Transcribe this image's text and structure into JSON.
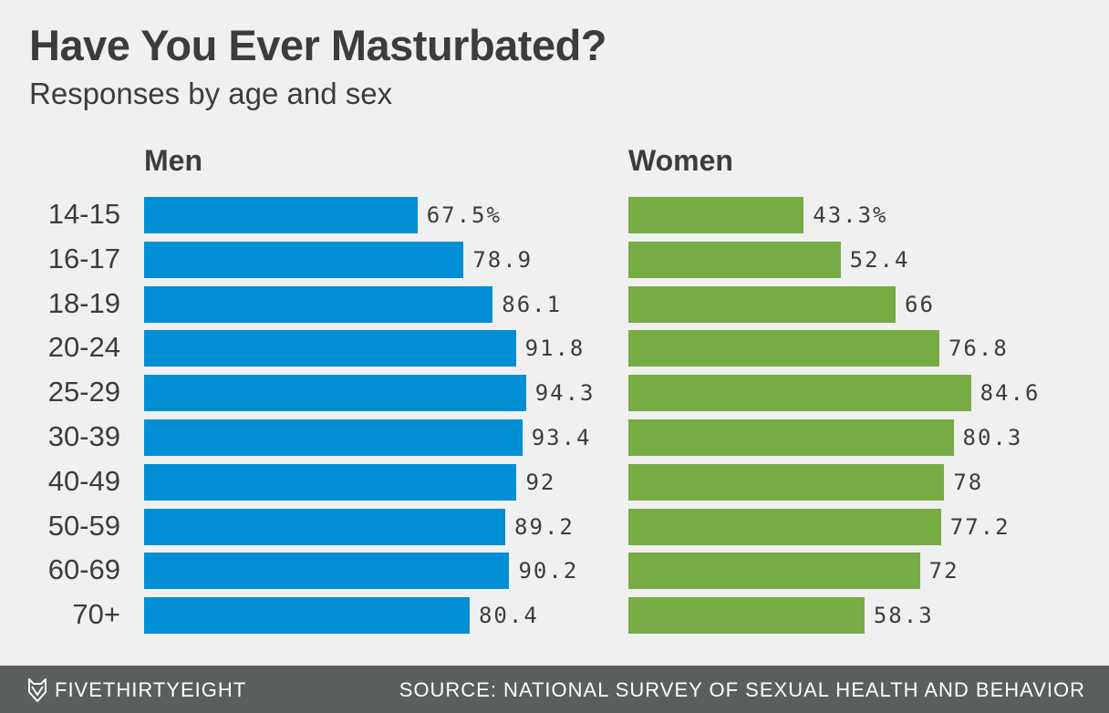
{
  "chart_data": [
    {
      "type": "bar",
      "orientation": "horizontal",
      "title": "Men",
      "categories": [
        "14-15",
        "16-17",
        "18-19",
        "20-24",
        "25-29",
        "30-39",
        "40-49",
        "50-59",
        "60-69",
        "70+"
      ],
      "values": [
        67.5,
        78.9,
        86.1,
        91.8,
        94.3,
        93.4,
        92,
        89.2,
        90.2,
        80.4
      ],
      "labels": [
        "67.5%",
        "78.9",
        "86.1",
        "91.8",
        "94.3",
        "93.4",
        "92",
        "89.2",
        "90.2",
        "80.4"
      ],
      "color": "#008fd5",
      "xlim": [
        0,
        100
      ],
      "grid": false
    },
    {
      "type": "bar",
      "orientation": "horizontal",
      "title": "Women",
      "categories": [
        "14-15",
        "16-17",
        "18-19",
        "20-24",
        "25-29",
        "30-39",
        "40-49",
        "50-59",
        "60-69",
        "70+"
      ],
      "values": [
        43.3,
        52.4,
        66,
        76.8,
        84.6,
        80.3,
        78,
        77.2,
        72,
        58.3
      ],
      "labels": [
        "43.3%",
        "52.4",
        "66",
        "76.8",
        "84.6",
        "80.3",
        "78",
        "77.2",
        "72",
        "58.3"
      ],
      "color": "#77ab43",
      "xlim": [
        0,
        100
      ],
      "grid": false
    }
  ],
  "header": {
    "title": "Have You Ever Masturbated?",
    "subtitle": "Responses by age and sex"
  },
  "footer": {
    "brand": "FIVETHIRTYEIGHT",
    "source": "SOURCE: NATIONAL SURVEY OF SEXUAL HEALTH AND BEHAVIOR",
    "logo_icon": "fox-icon"
  }
}
